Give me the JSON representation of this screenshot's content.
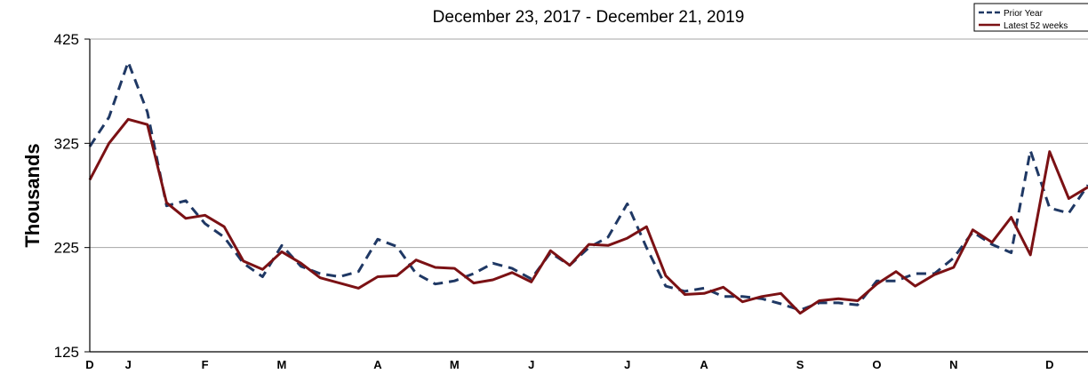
{
  "chart_data": {
    "type": "line",
    "title": "December 23, 2017  - December 21, 2019",
    "ylabel": "Thousands",
    "xlabel": "",
    "ylim": [
      125,
      425
    ],
    "yticks": [
      125,
      225,
      325,
      425
    ],
    "grid": true,
    "legend_position": "top-right",
    "month_labels": [
      "D",
      "J",
      "F",
      "M",
      "A",
      "M",
      "J",
      "J",
      "A",
      "S",
      "O",
      "N",
      "D"
    ],
    "month_label_weeks": [
      0,
      2,
      6,
      10,
      15,
      19,
      23,
      28,
      32,
      37,
      41,
      45,
      50
    ],
    "series": [
      {
        "name": "Prior Year",
        "color": "#1f3864",
        "style": "dashed",
        "values": [
          322,
          350,
          403,
          355,
          265,
          270,
          248,
          235,
          210,
          197,
          227,
          207,
          200,
          197,
          202,
          233,
          226,
          200,
          190,
          193,
          200,
          210,
          205,
          195,
          220,
          208,
          225,
          235,
          267,
          225,
          188,
          183,
          186,
          178,
          178,
          176,
          171,
          165,
          172,
          172,
          170,
          193,
          193,
          200,
          200,
          215,
          240,
          228,
          220,
          318,
          263,
          258,
          285
        ]
      },
      {
        "name": "Latest 52 weeks",
        "color": "#7b1114",
        "style": "solid",
        "values": [
          290,
          325,
          348,
          343,
          268,
          253,
          256,
          245,
          212,
          204,
          221,
          210,
          196,
          191,
          186,
          197,
          198,
          213,
          206,
          205,
          191,
          194,
          201,
          192,
          222,
          208,
          228,
          227,
          234,
          245,
          198,
          180,
          181,
          187,
          173,
          178,
          181,
          162,
          174,
          176,
          174,
          190,
          202,
          188,
          199,
          206,
          242,
          230,
          254,
          218,
          317,
          272,
          283
        ]
      }
    ]
  }
}
